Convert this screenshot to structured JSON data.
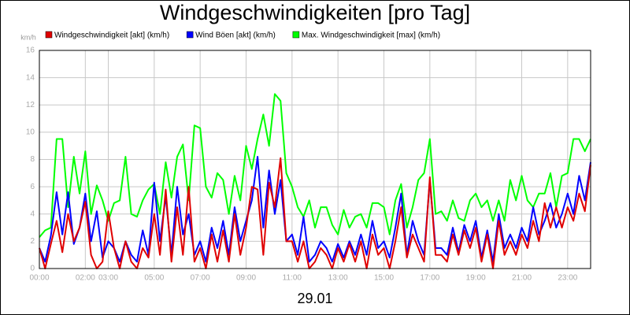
{
  "chart_data": {
    "type": "line",
    "title": "Windgeschwindigkeiten [pro Tag]",
    "ylabel": "km/h",
    "xlabel": "29.01",
    "xlim": [
      0,
      24
    ],
    "ylim": [
      0,
      16
    ],
    "yticks": [
      0,
      2,
      4,
      6,
      8,
      10,
      12,
      14,
      16
    ],
    "xticks": [
      {
        "value": 0,
        "label": "00:00"
      },
      {
        "value": 2,
        "label": "02:00"
      },
      {
        "value": 3,
        "label": "03:00"
      },
      {
        "value": 5,
        "label": "05:00"
      },
      {
        "value": 7,
        "label": "07:00"
      },
      {
        "value": 9,
        "label": "09:00"
      },
      {
        "value": 11,
        "label": "11:00"
      },
      {
        "value": 13,
        "label": "13:00"
      },
      {
        "value": 15,
        "label": "15:00"
      },
      {
        "value": 17,
        "label": "17:00"
      },
      {
        "value": 19,
        "label": "19:00"
      },
      {
        "value": 21,
        "label": "21:00"
      },
      {
        "value": 23,
        "label": "23:00"
      }
    ],
    "grid": true,
    "legend": "top",
    "x": [
      0,
      0.25,
      0.5,
      0.75,
      1,
      1.25,
      1.5,
      1.75,
      2,
      2.25,
      2.5,
      2.75,
      3,
      3.25,
      3.5,
      3.75,
      4,
      4.25,
      4.5,
      4.75,
      5,
      5.25,
      5.5,
      5.75,
      6,
      6.25,
      6.5,
      6.75,
      7,
      7.25,
      7.5,
      7.75,
      8,
      8.25,
      8.5,
      8.75,
      9,
      9.25,
      9.5,
      9.75,
      10,
      10.25,
      10.5,
      10.75,
      11,
      11.25,
      11.5,
      11.75,
      12,
      12.25,
      12.5,
      12.75,
      13,
      13.25,
      13.5,
      13.75,
      14,
      14.25,
      14.5,
      14.75,
      15,
      15.25,
      15.5,
      15.75,
      16,
      16.25,
      16.5,
      16.75,
      17,
      17.25,
      17.5,
      17.75,
      18,
      18.25,
      18.5,
      18.75,
      19,
      19.25,
      19.5,
      19.75,
      20,
      20.25,
      20.5,
      20.75,
      21,
      21.25,
      21.5,
      21.75,
      22,
      22.25,
      22.5,
      22.75,
      23,
      23.25,
      23.5,
      23.75,
      24
    ],
    "series": [
      {
        "name": "Max. Windgeschwindigkeit [max] (km/h)",
        "color": "#00ff00",
        "values": [
          2.3,
          2.8,
          3.0,
          9.5,
          9.5,
          4.5,
          8.2,
          5.5,
          8.6,
          4.0,
          6.1,
          5.0,
          3.5,
          4.8,
          5.0,
          8.2,
          4.0,
          3.8,
          5.0,
          5.8,
          6.2,
          4.0,
          7.8,
          5.2,
          8.2,
          9.1,
          5.0,
          10.5,
          10.3,
          6.0,
          5.2,
          7.0,
          6.5,
          4.0,
          6.8,
          5.0,
          9.0,
          7.3,
          9.5,
          11.3,
          9.0,
          12.8,
          12.3,
          7.0,
          6.0,
          4.5,
          3.8,
          5.0,
          3.0,
          4.5,
          4.5,
          3.2,
          2.5,
          4.3,
          3.0,
          3.8,
          4.0,
          3.0,
          4.8,
          4.8,
          4.5,
          2.5,
          5.0,
          6.2,
          3.0,
          4.5,
          6.5,
          7.0,
          9.5,
          4.0,
          4.2,
          3.5,
          5.0,
          3.7,
          3.5,
          5.0,
          5.5,
          4.5,
          5.0,
          3.5,
          5.0,
          3.5,
          6.5,
          5.0,
          6.8,
          5.0,
          4.5,
          5.5,
          5.5,
          7.0,
          4.5,
          6.8,
          7.0,
          9.5,
          9.5,
          8.6,
          9.5
        ]
      },
      {
        "name": "Wind Böen [akt] (km/h)",
        "color": "#0000ff",
        "values": [
          1.5,
          0.5,
          2.4,
          5.6,
          2.5,
          5.6,
          1.8,
          3.0,
          5.5,
          2.0,
          4.2,
          0.8,
          2.0,
          1.5,
          0.5,
          2.0,
          1.0,
          0.5,
          2.8,
          1.0,
          6.3,
          2.0,
          5.3,
          1.0,
          6.0,
          2.5,
          4.0,
          1.0,
          2.0,
          0.5,
          3.0,
          1.5,
          3.5,
          1.0,
          4.5,
          2.0,
          3.5,
          5.0,
          8.2,
          3.0,
          7.2,
          4.0,
          6.5,
          2.0,
          2.5,
          1.0,
          3.8,
          0.5,
          1.0,
          2.0,
          1.5,
          0.5,
          1.8,
          0.8,
          2.0,
          1.0,
          2.5,
          1.0,
          3.5,
          1.5,
          2.0,
          0.8,
          3.0,
          5.5,
          1.0,
          3.5,
          2.0,
          1.0,
          6.5,
          1.5,
          1.5,
          1.0,
          3.0,
          1.2,
          3.2,
          2.0,
          3.5,
          0.8,
          2.8,
          0.5,
          4.0,
          1.5,
          2.5,
          1.5,
          3.0,
          2.0,
          4.5,
          2.5,
          3.5,
          4.8,
          3.0,
          4.0,
          5.5,
          4.0,
          6.8,
          5.0,
          7.8
        ]
      },
      {
        "name": "Windgeschwindigkeit [akt] (km/h)",
        "color": "#e00000",
        "values": [
          1.5,
          0,
          1.8,
          3.5,
          1.2,
          4.0,
          2.0,
          3.0,
          4.9,
          1.0,
          0,
          0.5,
          4.2,
          1.5,
          0,
          2.0,
          0.5,
          0,
          1.5,
          0.8,
          4.0,
          1.0,
          5.8,
          0.5,
          4.5,
          1.0,
          6.0,
          0.5,
          1.5,
          0,
          2.5,
          0.5,
          2.8,
          0.5,
          4.0,
          1.0,
          3.0,
          6.0,
          5.8,
          1.0,
          6.3,
          4.5,
          8.1,
          2.0,
          2.0,
          0.5,
          2.0,
          0,
          0.5,
          1.5,
          1.0,
          0,
          1.5,
          0.5,
          1.8,
          0.5,
          2.0,
          0,
          2.5,
          1.0,
          1.5,
          0,
          2.0,
          4.5,
          0.8,
          2.5,
          1.5,
          0.5,
          6.7,
          1.0,
          1.0,
          0.5,
          2.5,
          1.0,
          2.8,
          1.5,
          3.0,
          0.5,
          2.5,
          0,
          3.5,
          1.0,
          2.0,
          1.0,
          2.5,
          1.5,
          3.5,
          2.0,
          4.8,
          3.0,
          4.5,
          3.0,
          4.5,
          3.5,
          5.5,
          4.2,
          7.6
        ]
      }
    ],
    "legend_order": [
      2,
      1,
      0
    ]
  }
}
